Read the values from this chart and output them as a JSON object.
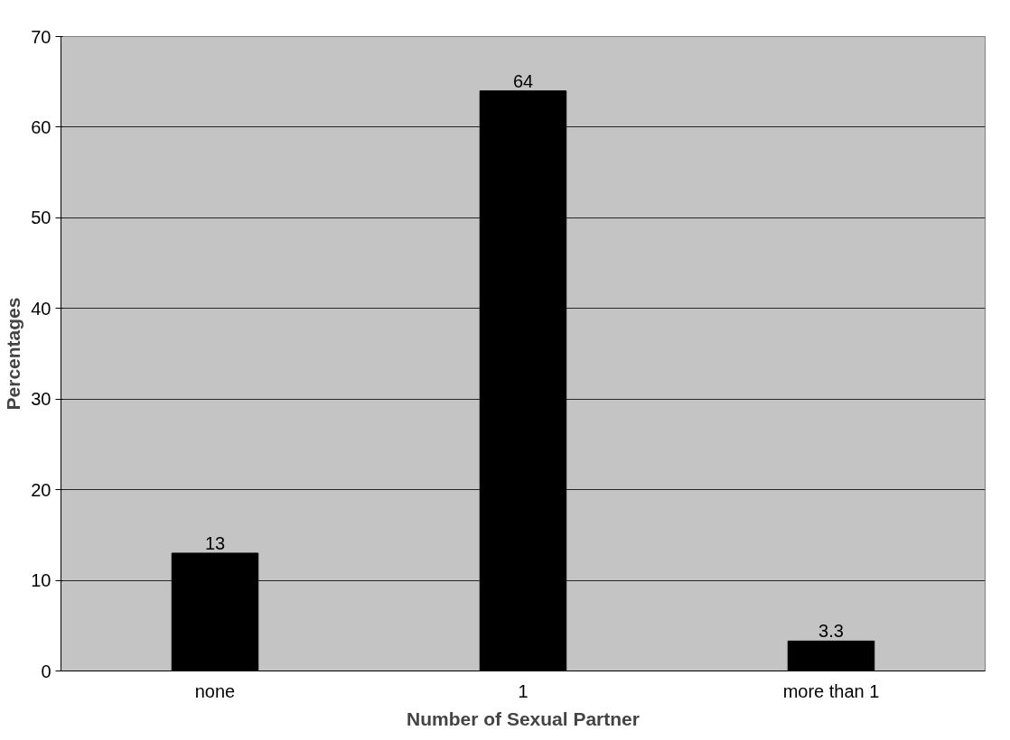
{
  "chart_data": {
    "type": "bar",
    "xlabel": "Number of Sexual Partner",
    "ylabel": "Percentages",
    "categories": [
      "none",
      "1",
      "more than 1"
    ],
    "values": [
      13,
      64,
      3.3
    ],
    "color": "#000000",
    "ylim": [
      0,
      70
    ],
    "yticks": [
      0,
      10,
      20,
      30,
      40,
      50,
      60,
      70
    ],
    "grid": "y",
    "data_labels": true
  }
}
